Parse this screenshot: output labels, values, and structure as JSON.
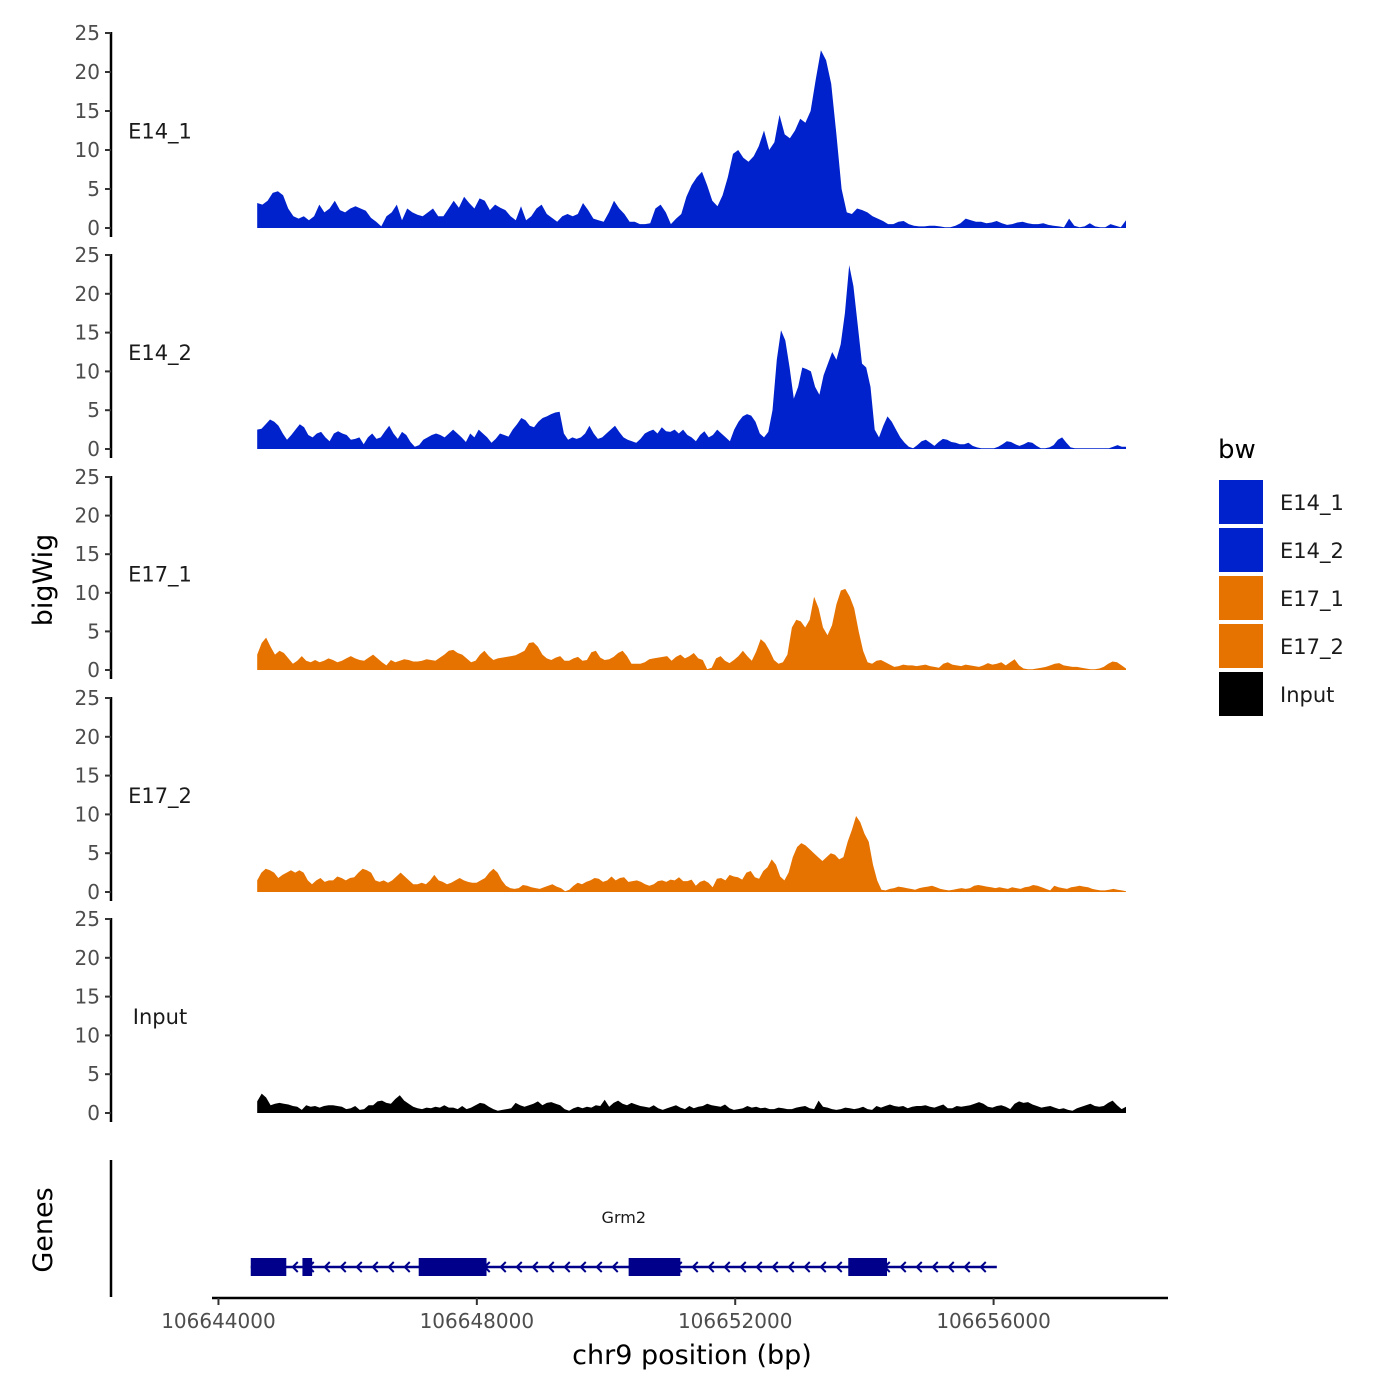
{
  "chart_data": {
    "type": "area",
    "y_axis_title": "bigWig",
    "genes_axis_title": "Genes",
    "x_axis_title": "chr9 position (bp)",
    "xlim": [
      106643900,
      106658700
    ],
    "data_xrange": [
      106644600,
      106658050
    ],
    "x_ticks": [
      106644000,
      106648000,
      106652000,
      106656000
    ],
    "ylim": [
      0,
      25
    ],
    "y_ticks": [
      0,
      5,
      10,
      15,
      20,
      25
    ],
    "legend": {
      "title": "bw",
      "entries": [
        {
          "label": "E14_1",
          "color": "#0022cc"
        },
        {
          "label": "E14_2",
          "color": "#0022cc"
        },
        {
          "label": "E17_1",
          "color": "#e67300"
        },
        {
          "label": "E17_2",
          "color": "#e67300"
        },
        {
          "label": "Input",
          "color": "#000000"
        }
      ]
    },
    "series": [
      {
        "name": "E14_1",
        "color": "#0022cc",
        "values": [
          3.2,
          3.0,
          3.5,
          4.5,
          4.7,
          4.2,
          2.5,
          1.5,
          1.2,
          1.5,
          1.0,
          1.5,
          3.0,
          2.0,
          2.5,
          3.5,
          2.3,
          2.0,
          2.5,
          2.8,
          2.5,
          2.2,
          1.3,
          0.8,
          0.2,
          1.5,
          2.0,
          3.0,
          1.0,
          2.5,
          2.0,
          1.7,
          1.5,
          2.0,
          2.5,
          1.5,
          1.5,
          2.5,
          3.5,
          2.6,
          4.0,
          3.2,
          2.5,
          3.8,
          3.5,
          2.3,
          3.0,
          2.6,
          2.3,
          1.5,
          1.0,
          2.8,
          1.0,
          1.5,
          2.5,
          3.0,
          1.8,
          1.3,
          0.8,
          1.5,
          1.8,
          1.5,
          1.8,
          3.2,
          2.3,
          1.2,
          1.0,
          0.8,
          2.0,
          3.5,
          2.5,
          1.8,
          0.8,
          0.8,
          0.5,
          0.5,
          0.6,
          2.5,
          3.0,
          2.0,
          0.5,
          1.2,
          1.8,
          4.0,
          5.5,
          6.5,
          7.2,
          5.5,
          3.5,
          2.8,
          4.2,
          6.5,
          9.5,
          10.0,
          9.0,
          8.5,
          9.2,
          10.5,
          12.5,
          10.0,
          11.0,
          14.5,
          12.0,
          11.5,
          12.5,
          14.0,
          13.5,
          15.0,
          19.0,
          22.8,
          21.5,
          18.5,
          12.0,
          5.0,
          2.0,
          1.8,
          2.5,
          2.3,
          2.0,
          1.5,
          1.2,
          0.9,
          0.5,
          0.5,
          0.8,
          0.9,
          0.5,
          0.3,
          0.2,
          0.2,
          0.3,
          0.3,
          0.2,
          0.1,
          0.1,
          0.3,
          0.6,
          1.2,
          1.0,
          0.8,
          0.8,
          0.6,
          0.7,
          0.9,
          0.6,
          0.4,
          0.5,
          0.7,
          0.8,
          0.6,
          0.5,
          0.5,
          0.6,
          0.4,
          0.3,
          0.2,
          0.1,
          1.2,
          0.3,
          0.1,
          0.2,
          0.6,
          0.2,
          0.1,
          0.1,
          0.5,
          0.3,
          0.1,
          1.0
        ]
      },
      {
        "name": "E14_2",
        "color": "#0022cc",
        "values": [
          2.5,
          2.6,
          3.2,
          3.8,
          3.5,
          3.0,
          2.0,
          1.2,
          1.8,
          2.5,
          3.2,
          2.8,
          1.8,
          1.5,
          2.0,
          2.2,
          1.5,
          1.0,
          2.0,
          2.3,
          2.0,
          1.8,
          1.2,
          1.3,
          1.5,
          0.6,
          1.5,
          2.0,
          1.3,
          1.5,
          2.3,
          3.0,
          2.0,
          1.3,
          2.2,
          1.8,
          0.9,
          0.3,
          0.5,
          1.2,
          1.5,
          1.8,
          2.0,
          1.8,
          1.5,
          2.0,
          2.5,
          2.0,
          1.5,
          0.9,
          2.0,
          1.5,
          2.5,
          2.0,
          1.5,
          0.8,
          1.3,
          2.0,
          1.8,
          1.6,
          2.5,
          3.2,
          4.0,
          3.7,
          3.0,
          2.8,
          3.5,
          4.0,
          4.2,
          4.5,
          4.7,
          4.8,
          2.0,
          1.2,
          1.5,
          1.3,
          1.5,
          2.0,
          3.0,
          2.0,
          1.3,
          1.5,
          2.0,
          2.5,
          3.0,
          2.2,
          1.5,
          1.2,
          1.0,
          0.8,
          1.3,
          2.0,
          2.3,
          2.5,
          2.0,
          2.8,
          2.3,
          2.2,
          2.5,
          2.0,
          2.5,
          1.8,
          1.5,
          1.0,
          1.8,
          2.3,
          1.5,
          1.8,
          2.5,
          2.0,
          1.5,
          1.0,
          2.5,
          3.5,
          4.2,
          4.5,
          4.3,
          3.5,
          2.0,
          1.5,
          2.2,
          5.0,
          11.5,
          15.3,
          14.0,
          10.5,
          6.5,
          8.0,
          10.5,
          10.3,
          10.0,
          8.0,
          7.0,
          9.5,
          11.0,
          12.5,
          11.5,
          13.5,
          17.5,
          23.7,
          21.0,
          16.0,
          11.0,
          10.5,
          8.0,
          2.5,
          1.5,
          3.0,
          4.2,
          3.5,
          2.5,
          1.5,
          0.8,
          0.3,
          0.1,
          0.5,
          1.0,
          1.2,
          0.8,
          0.4,
          0.9,
          1.3,
          1.2,
          0.9,
          0.8,
          0.6,
          0.6,
          0.8,
          0.4,
          0.2,
          0.1,
          0.1,
          0.1,
          0.1,
          0.3,
          0.6,
          1.0,
          0.9,
          0.6,
          0.4,
          0.6,
          0.9,
          0.8,
          0.4,
          0.1,
          0.1,
          0.2,
          0.5,
          1.2,
          1.5,
          0.8,
          0.2,
          0.1,
          0.1,
          0.1,
          0.1,
          0.1,
          0.1,
          0.1,
          0.1,
          0.1,
          0.3,
          0.5,
          0.3,
          0.3
        ]
      },
      {
        "name": "E17_1",
        "color": "#e67300",
        "values": [
          2.0,
          3.5,
          4.2,
          3.0,
          2.0,
          2.5,
          2.2,
          1.5,
          0.8,
          1.2,
          1.8,
          1.2,
          1.0,
          1.3,
          1.0,
          1.2,
          1.5,
          1.3,
          1.0,
          1.2,
          1.5,
          1.8,
          1.5,
          1.3,
          1.2,
          1.6,
          2.0,
          1.5,
          1.0,
          0.6,
          1.3,
          1.0,
          1.2,
          1.4,
          1.3,
          1.1,
          1.1,
          1.2,
          1.4,
          1.3,
          1.2,
          1.6,
          2.0,
          2.5,
          2.6,
          2.2,
          2.0,
          1.5,
          1.0,
          1.2,
          2.0,
          2.5,
          1.8,
          1.3,
          1.5,
          1.6,
          1.7,
          1.8,
          1.9,
          2.2,
          2.5,
          3.5,
          3.6,
          3.0,
          2.0,
          1.5,
          1.3,
          1.6,
          1.8,
          1.2,
          1.2,
          1.5,
          1.7,
          1.2,
          1.3,
          2.3,
          2.5,
          1.6,
          1.3,
          1.4,
          1.7,
          2.2,
          2.5,
          1.8,
          0.8,
          0.8,
          0.8,
          1.0,
          1.4,
          1.5,
          1.6,
          1.7,
          1.8,
          1.2,
          1.7,
          2.0,
          1.5,
          1.8,
          2.2,
          1.5,
          1.3,
          0.1,
          0.3,
          1.5,
          1.8,
          1.2,
          0.9,
          1.3,
          1.8,
          2.5,
          1.8,
          1.2,
          2.4,
          4.0,
          3.5,
          2.5,
          1.3,
          0.8,
          1.0,
          2.0,
          5.5,
          6.5,
          6.3,
          5.5,
          6.5,
          9.5,
          8.0,
          5.5,
          4.5,
          5.8,
          8.5,
          10.3,
          10.5,
          9.5,
          8.0,
          5.0,
          2.5,
          1.0,
          0.8,
          1.2,
          1.3,
          1.0,
          0.7,
          0.4,
          0.5,
          0.7,
          0.6,
          0.6,
          0.5,
          0.6,
          0.7,
          0.5,
          0.4,
          0.3,
          0.8,
          1.0,
          0.7,
          0.6,
          0.5,
          0.7,
          0.6,
          0.5,
          0.4,
          0.6,
          0.9,
          0.7,
          0.8,
          1.0,
          0.6,
          1.0,
          1.4,
          0.6,
          0.2,
          0.1,
          0.1,
          0.2,
          0.3,
          0.4,
          0.6,
          0.8,
          0.9,
          0.6,
          0.5,
          0.4,
          0.4,
          0.3,
          0.2,
          0.1,
          0.1,
          0.2,
          0.4,
          0.8,
          1.1,
          1.0,
          0.6,
          0.2
        ]
      },
      {
        "name": "E17_2",
        "color": "#e67300",
        "values": [
          1.5,
          2.5,
          3.0,
          2.8,
          2.5,
          1.8,
          2.2,
          2.5,
          2.8,
          2.5,
          2.8,
          2.5,
          1.5,
          1.0,
          1.5,
          1.8,
          1.3,
          1.5,
          1.5,
          2.0,
          1.8,
          1.5,
          1.8,
          1.9,
          2.5,
          3.0,
          2.8,
          2.5,
          1.5,
          1.3,
          1.5,
          1.2,
          1.5,
          2.0,
          2.5,
          2.0,
          1.5,
          1.0,
          1.0,
          1.2,
          1.0,
          1.5,
          2.2,
          1.5,
          1.3,
          1.0,
          1.2,
          1.5,
          1.8,
          1.5,
          1.3,
          1.2,
          1.2,
          1.5,
          1.8,
          2.5,
          3.0,
          2.5,
          1.5,
          0.8,
          0.5,
          0.4,
          0.5,
          0.9,
          0.8,
          0.6,
          0.5,
          0.4,
          0.6,
          0.8,
          1.0,
          0.7,
          0.5,
          0.1,
          0.3,
          0.8,
          1.2,
          1.0,
          1.3,
          1.5,
          1.8,
          1.7,
          1.3,
          1.5,
          2.0,
          1.5,
          1.8,
          1.9,
          1.3,
          1.4,
          1.5,
          1.3,
          1.0,
          0.8,
          1.0,
          1.4,
          1.5,
          1.3,
          1.6,
          1.5,
          1.9,
          1.4,
          1.4,
          1.6,
          0.8,
          1.3,
          1.5,
          1.2,
          0.6,
          1.7,
          1.8,
          1.5,
          2.2,
          2.0,
          1.9,
          1.6,
          2.5,
          2.7,
          1.9,
          1.7,
          2.7,
          3.2,
          4.2,
          3.5,
          2.0,
          1.5,
          2.5,
          4.5,
          5.8,
          6.3,
          6.0,
          5.5,
          5.0,
          4.5,
          4.0,
          4.5,
          5.0,
          4.8,
          4.2,
          4.5,
          6.5,
          8.0,
          9.8,
          9.0,
          7.5,
          6.5,
          3.5,
          1.5,
          0.3,
          0.2,
          0.4,
          0.5,
          0.7,
          0.6,
          0.5,
          0.4,
          0.3,
          0.5,
          0.6,
          0.7,
          0.8,
          0.6,
          0.4,
          0.3,
          0.2,
          0.3,
          0.4,
          0.5,
          0.4,
          0.5,
          0.8,
          0.9,
          0.8,
          0.7,
          0.6,
          0.5,
          0.6,
          0.5,
          0.4,
          0.6,
          0.5,
          0.4,
          0.6,
          0.7,
          0.9,
          0.8,
          0.6,
          0.4,
          0.2,
          0.8,
          0.6,
          0.5,
          0.4,
          0.6,
          0.7,
          0.8,
          0.7,
          0.6,
          0.4,
          0.3,
          0.2,
          0.2,
          0.3,
          0.4,
          0.3,
          0.2,
          0.1
        ]
      },
      {
        "name": "Input",
        "color": "#000000",
        "values": [
          1.5,
          2.5,
          2.0,
          1.0,
          1.2,
          1.3,
          1.2,
          1.1,
          0.9,
          0.8,
          0.4,
          1.0,
          0.8,
          0.9,
          0.7,
          0.9,
          1.0,
          1.0,
          0.9,
          0.8,
          0.5,
          0.6,
          0.9,
          0.4,
          0.5,
          1.0,
          1.0,
          1.5,
          1.6,
          1.3,
          1.2,
          1.8,
          2.3,
          1.6,
          1.2,
          0.8,
          0.6,
          0.5,
          0.7,
          0.6,
          0.8,
          0.7,
          1.0,
          0.7,
          0.7,
          0.5,
          0.9,
          0.5,
          0.7,
          1.0,
          1.3,
          1.2,
          0.8,
          0.5,
          0.3,
          0.4,
          0.5,
          0.6,
          1.3,
          1.0,
          0.8,
          1.0,
          1.2,
          1.5,
          1.0,
          1.3,
          1.4,
          1.2,
          1.0,
          0.5,
          0.3,
          0.6,
          0.8,
          0.6,
          0.8,
          0.7,
          1.0,
          0.9,
          1.7,
          0.8,
          1.3,
          1.6,
          1.2,
          1.0,
          1.3,
          1.1,
          0.9,
          0.8,
          0.7,
          1.0,
          0.6,
          0.4,
          0.6,
          0.8,
          1.0,
          0.7,
          0.5,
          0.9,
          0.6,
          0.8,
          0.9,
          1.2,
          1.0,
          0.9,
          0.8,
          1.1,
          0.6,
          0.4,
          0.5,
          0.6,
          0.9,
          0.7,
          0.8,
          0.6,
          0.7,
          0.5,
          0.5,
          0.7,
          0.6,
          0.5,
          0.5,
          0.7,
          0.8,
          0.9,
          0.6,
          0.5,
          1.6,
          0.8,
          0.7,
          0.5,
          0.4,
          0.5,
          0.7,
          0.6,
          0.5,
          0.6,
          0.8,
          0.5,
          0.4,
          0.9,
          0.7,
          0.9,
          1.1,
          0.9,
          0.8,
          0.9,
          0.6,
          0.8,
          0.9,
          0.9,
          1.0,
          0.8,
          0.7,
          0.9,
          1.1,
          0.6,
          0.6,
          0.9,
          0.8,
          0.9,
          1.0,
          1.2,
          1.4,
          1.2,
          0.8,
          0.7,
          0.9,
          1.0,
          0.8,
          0.5,
          1.2,
          1.5,
          1.3,
          1.4,
          1.1,
          0.9,
          0.7,
          0.8,
          0.9,
          0.7,
          0.5,
          0.6,
          0.4,
          0.3,
          0.6,
          0.8,
          1.0,
          1.2,
          0.9,
          0.8,
          0.9,
          1.3,
          1.6,
          1.0,
          0.5,
          0.8
        ]
      }
    ],
    "genes": {
      "name": "Grm2",
      "color": "#00008b",
      "strand": "-",
      "start": 106644500,
      "end": 106656050,
      "exons": [
        [
          106644500,
          106645050
        ],
        [
          106645300,
          106645450
        ],
        [
          106647100,
          106648150
        ],
        [
          106650350,
          106651150
        ],
        [
          106653750,
          106654350
        ]
      ]
    }
  }
}
